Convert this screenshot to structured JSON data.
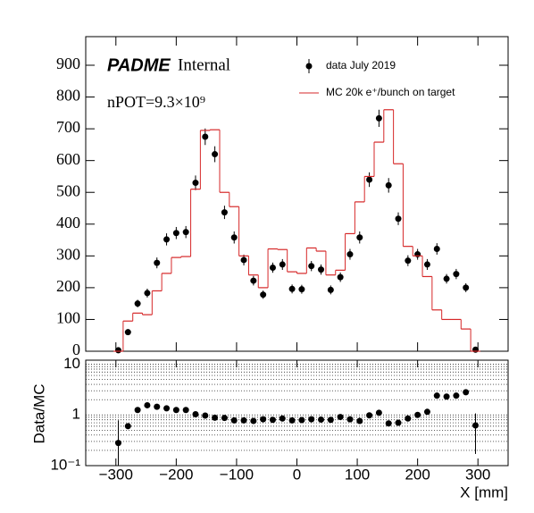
{
  "chart_data": [
    {
      "type": "histogram",
      "annotations": [
        "PADME",
        "Internal",
        "nPOT=9.3×10⁹"
      ],
      "bins": [
        -304,
        -288,
        -272,
        -256,
        -240,
        -224,
        -208,
        -192,
        -176,
        -160,
        -144,
        -128,
        -112,
        -96,
        -80,
        -64,
        -48,
        -32,
        -16,
        0,
        16,
        32,
        48,
        64,
        80,
        96,
        112,
        128,
        144,
        160,
        176,
        192,
        208,
        224,
        240,
        256,
        272,
        288,
        304
      ],
      "series": [
        {
          "name": "data July 2019",
          "color": "#000000",
          "style": "points",
          "values": [
            3,
            60,
            150,
            183,
            278,
            352,
            372,
            375,
            530,
            675,
            620,
            437,
            358,
            287,
            222,
            178,
            263,
            273,
            196,
            195,
            268,
            257,
            193,
            233,
            305,
            358,
            540,
            733,
            522,
            417,
            285,
            305,
            273,
            322,
            228,
            243,
            200,
            5
          ],
          "errors": [
            2,
            8,
            12,
            14,
            17,
            19,
            19,
            19,
            23,
            26,
            25,
            21,
            19,
            17,
            15,
            13,
            16,
            17,
            14,
            14,
            16,
            16,
            14,
            15,
            17,
            19,
            23,
            27,
            23,
            20,
            17,
            17,
            17,
            18,
            15,
            16,
            14,
            2
          ]
        },
        {
          "name": "MC 20k e⁺/bunch on target",
          "color": "#d62728",
          "style": "step",
          "values": [
            0,
            95,
            120,
            115,
            190,
            245,
            295,
            298,
            510,
            695,
            697,
            500,
            455,
            300,
            240,
            200,
            322,
            320,
            250,
            245,
            325,
            315,
            240,
            255,
            370,
            470,
            550,
            658,
            760,
            590,
            330,
            300,
            235,
            130,
            100,
            100,
            70,
            0
          ]
        }
      ],
      "xlim": [
        -350,
        350
      ],
      "ylim": [
        0,
        990
      ],
      "yticks": [
        0,
        100,
        200,
        300,
        400,
        500,
        600,
        700,
        800,
        900
      ]
    },
    {
      "type": "scatter",
      "xlabel": "X [mm]",
      "ylabel": "Data/MC",
      "bins": [
        -304,
        -288,
        -272,
        -256,
        -240,
        -224,
        -208,
        -192,
        -176,
        -160,
        -144,
        -128,
        -112,
        -96,
        -80,
        -64,
        -48,
        -32,
        -16,
        0,
        16,
        32,
        48,
        64,
        80,
        96,
        112,
        128,
        144,
        160,
        176,
        192,
        208,
        224,
        240,
        256,
        272,
        288,
        304
      ],
      "series": [
        {
          "name": "Data/MC",
          "color": "#000000",
          "values": [
            0.28,
            0.6,
            1.25,
            1.55,
            1.45,
            1.35,
            1.25,
            1.25,
            1.03,
            0.97,
            0.88,
            0.87,
            0.78,
            0.78,
            0.76,
            0.82,
            0.8,
            0.85,
            0.78,
            0.79,
            0.82,
            0.81,
            0.8,
            0.91,
            0.82,
            0.76,
            0.98,
            1.1,
            0.68,
            0.7,
            0.85,
            1.0,
            1.15,
            2.4,
            2.3,
            2.4,
            2.8,
            0.62
          ],
          "errors": [
            0.5,
            null,
            null,
            null,
            null,
            null,
            null,
            null,
            null,
            null,
            null,
            null,
            null,
            null,
            null,
            null,
            null,
            null,
            null,
            null,
            null,
            null,
            null,
            null,
            null,
            null,
            null,
            null,
            null,
            null,
            null,
            null,
            null,
            null,
            null,
            null,
            null,
            0.45
          ]
        }
      ],
      "xlim": [
        -350,
        350
      ],
      "xticks": [
        {
          "value": -300,
          "label": "−300"
        },
        {
          "value": -200,
          "label": "−200"
        },
        {
          "value": -100,
          "label": "−100"
        },
        0,
        100,
        200,
        300
      ],
      "log_scale": true,
      "grid": true,
      "ylim": [
        0.1,
        12
      ],
      "yticks": [
        {
          "value": 0.1,
          "label": "10⁻¹"
        },
        1,
        10
      ],
      "yminor": [
        0.2,
        0.3,
        0.4,
        0.5,
        0.6,
        0.7,
        0.8,
        0.9,
        2,
        3,
        4,
        5,
        6,
        7,
        8,
        9
      ]
    }
  ]
}
